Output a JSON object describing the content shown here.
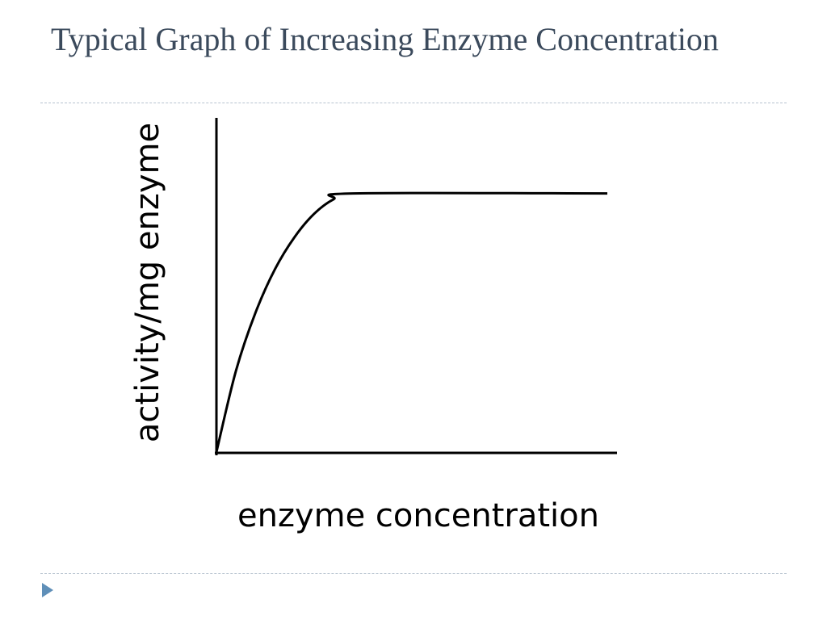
{
  "slide": {
    "title": "Typical Graph of Increasing Enzyme Concentration",
    "nav_icon": "triangle-right-icon",
    "accent_color": "#5f8fb8",
    "title_color": "#3b4a5c"
  },
  "chart_data": {
    "type": "line",
    "title": "",
    "xlabel": "enzyme concentration",
    "ylabel": "activity/mg enzyme",
    "xlim": [
      0,
      100
    ],
    "ylim": [
      0,
      100
    ],
    "grid": false,
    "legend": "none",
    "series": [
      {
        "x": [
          0,
          5,
          10,
          15,
          20,
          25,
          30,
          35,
          100
        ],
        "y": [
          0,
          28,
          48,
          63,
          74,
          82,
          87,
          89,
          89
        ]
      }
    ]
  }
}
